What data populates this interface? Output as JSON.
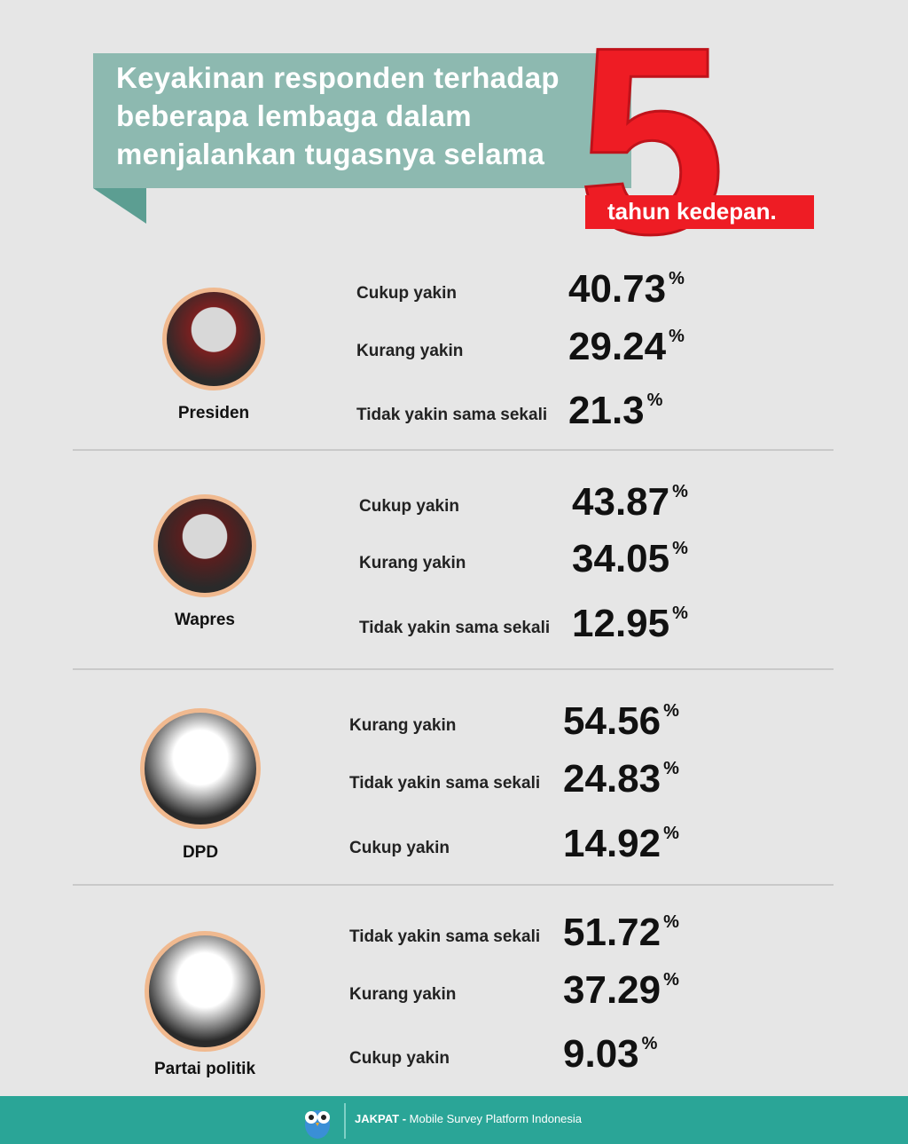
{
  "header": {
    "title_lines": [
      "Keyakinan responden terhadap",
      "beberapa lembaga dalam",
      "menjalankan tugasnya selama"
    ],
    "big_number": "5",
    "title_end": "tahun kedepan."
  },
  "sections": [
    {
      "label": "Presiden",
      "rows": [
        {
          "label": "Cukup yakin",
          "value": 40.73,
          "unit": "%"
        },
        {
          "label": "Kurang yakin",
          "value": 29.24,
          "unit": "%"
        },
        {
          "label": "Tidak yakin sama sekali",
          "value": 21.3,
          "unit": "%"
        }
      ]
    },
    {
      "label": "Wapres",
      "rows": [
        {
          "label": "Cukup yakin",
          "value": 43.87,
          "unit": "%"
        },
        {
          "label": "Kurang yakin",
          "value": 34.05,
          "unit": "%"
        },
        {
          "label": "Tidak yakin sama sekali",
          "value": 12.95,
          "unit": "%"
        }
      ]
    },
    {
      "label": "DPD",
      "rows": [
        {
          "label": "Kurang yakin",
          "value": 54.56,
          "unit": "%"
        },
        {
          "label": "Tidak yakin sama sekali",
          "value": 24.83,
          "unit": "%"
        },
        {
          "label": "Cukup yakin",
          "value": 14.92,
          "unit": "%"
        }
      ]
    },
    {
      "label": "Partai politik",
      "rows": [
        {
          "label": "Tidak yakin sama sekali",
          "value": 51.72,
          "unit": "%"
        },
        {
          "label": "Kurang yakin",
          "value": 37.29,
          "unit": "%"
        },
        {
          "label": "Cukup yakin",
          "value": 9.03,
          "unit": "%"
        }
      ]
    }
  ],
  "footer": {
    "brand": "JAKPAT -",
    "tagline": "Mobile Survey Platform Indonesia"
  }
}
